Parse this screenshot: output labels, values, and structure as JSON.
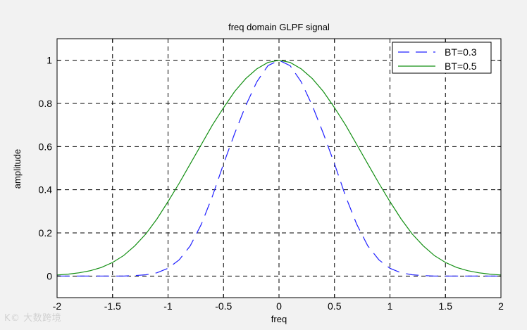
{
  "chart_data": {
    "type": "line",
    "title": "freq domain GLPF signal",
    "xlabel": "freq",
    "ylabel": "amplitude",
    "xlim": [
      -2,
      2
    ],
    "ylim": [
      -0.1,
      1.1
    ],
    "x_ticks": [
      -2,
      -1.5,
      -1,
      -0.5,
      0,
      0.5,
      1,
      1.5,
      2
    ],
    "x_tick_labels": [
      "-2",
      "-1.5",
      "-1",
      "-0.5",
      "0",
      "0.5",
      "1",
      "1.5",
      "2"
    ],
    "y_ticks": [
      0,
      0.2,
      0.4,
      0.6,
      0.8,
      1
    ],
    "y_tick_labels": [
      "0",
      "0.2",
      "0.4",
      "0.6",
      "0.8",
      "1"
    ],
    "grid": true,
    "legend_position": "top-right",
    "x": [
      -2,
      -1.9,
      -1.8,
      -1.7,
      -1.6,
      -1.5,
      -1.4,
      -1.3,
      -1.2,
      -1.1,
      -1,
      -0.9,
      -0.8,
      -0.7,
      -0.6,
      -0.5,
      -0.4,
      -0.3,
      -0.2,
      -0.1,
      0,
      0.1,
      0.2,
      0.3,
      0.4,
      0.5,
      0.6,
      0.7,
      0.8,
      0.9,
      1,
      1.1,
      1.2,
      1.3,
      1.4,
      1.5,
      1.6,
      1.7,
      1.8,
      1.9,
      2
    ],
    "series": [
      {
        "name": "BT=0.3",
        "color": "#2020ff",
        "style": "dashed",
        "values": [
          0,
          0,
          0,
          0,
          0,
          0,
          0,
          0.002,
          0.006,
          0.015,
          0.036,
          0.075,
          0.14,
          0.24,
          0.37,
          0.52,
          0.66,
          0.79,
          0.9,
          0.975,
          1,
          0.975,
          0.9,
          0.79,
          0.66,
          0.52,
          0.37,
          0.24,
          0.14,
          0.075,
          0.036,
          0.015,
          0.006,
          0.002,
          0,
          0,
          0,
          0,
          0,
          0,
          0
        ]
      },
      {
        "name": "BT=0.5",
        "color": "#138f13",
        "style": "solid",
        "values": [
          0.005,
          0.009,
          0.015,
          0.025,
          0.04,
          0.063,
          0.095,
          0.14,
          0.195,
          0.265,
          0.345,
          0.43,
          0.52,
          0.61,
          0.7,
          0.78,
          0.855,
          0.915,
          0.96,
          0.99,
          1,
          0.99,
          0.96,
          0.915,
          0.855,
          0.78,
          0.7,
          0.61,
          0.52,
          0.43,
          0.345,
          0.265,
          0.195,
          0.14,
          0.095,
          0.063,
          0.04,
          0.025,
          0.015,
          0.009,
          0.005
        ]
      }
    ]
  },
  "watermark": "K© 大数跨境"
}
